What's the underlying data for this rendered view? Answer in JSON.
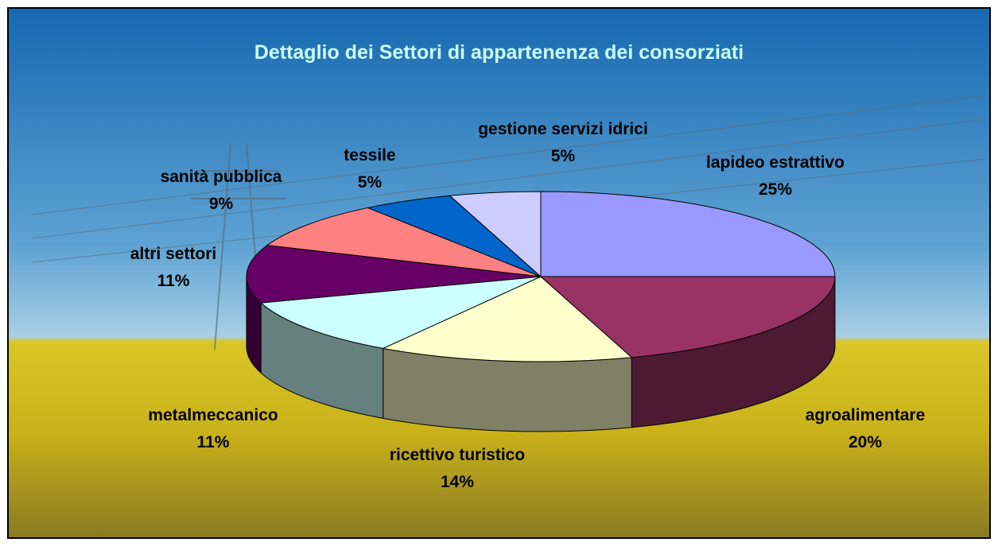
{
  "chart_data": {
    "type": "pie3d",
    "title": "Dettaglio dei Settori di appartenenza dei consorziati",
    "categories": [
      "lapideo estrattivo",
      "agroalimentare",
      "ricettivo turistico",
      "metalmeccanico",
      "altri settori",
      "sanità pubblica",
      "tessile",
      "gestione servizi idrici"
    ],
    "values": [
      25,
      20,
      14,
      11,
      11,
      9,
      5,
      5
    ],
    "value_labels": [
      "25%",
      "20%",
      "14%",
      "11%",
      "11%",
      "9%",
      "5%",
      "5%"
    ],
    "colors": [
      "#9999ff",
      "#993366",
      "#ffffcc",
      "#ccffff",
      "#660066",
      "#ff8080",
      "#0066cc",
      "#ccccff"
    ]
  }
}
